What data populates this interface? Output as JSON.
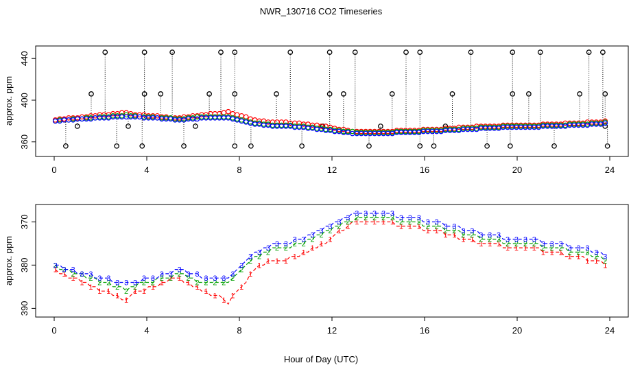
{
  "chart_data": [
    {
      "type": "scatter",
      "panel": "top",
      "title": "NWR_130716  CO2 Timeseries",
      "xlabel": "",
      "ylabel": "approx. ppm",
      "xlim": [
        -0.8,
        24.8
      ],
      "ylim": [
        346,
        452
      ],
      "xticks": [
        "0",
        "4",
        "8",
        "12",
        "16",
        "20",
        "24"
      ],
      "yticks": [
        "360",
        "400",
        "440"
      ],
      "grid": false,
      "legend": "none",
      "series": [
        {
          "name": "red",
          "color": "#ff0000",
          "values": [
            381,
            382,
            382,
            383,
            383,
            383,
            384,
            384,
            385,
            385,
            386,
            386,
            386,
            387,
            387,
            388,
            388,
            387,
            386,
            386,
            386,
            385,
            385,
            385,
            384,
            384,
            383,
            383,
            383,
            384,
            384,
            385,
            385,
            386,
            386,
            387,
            387,
            387,
            388,
            389,
            387,
            386,
            385,
            384,
            382,
            381,
            380,
            380,
            379,
            379,
            379,
            379,
            379,
            378,
            378,
            378,
            377,
            377,
            376,
            376,
            375,
            375,
            374,
            373,
            372,
            372,
            371,
            370,
            370,
            370,
            370,
            370,
            370,
            370,
            370,
            370,
            370,
            371,
            371,
            371,
            371,
            371,
            371,
            372,
            372,
            372,
            372,
            372,
            373,
            373,
            373,
            374,
            374,
            374,
            374,
            375,
            375,
            375,
            375,
            375,
            375,
            376,
            376,
            376,
            376,
            376,
            376,
            376,
            376,
            376,
            377,
            377,
            377,
            377,
            377,
            378,
            378,
            378,
            378,
            378,
            379,
            379,
            379,
            379,
            380
          ]
        },
        {
          "name": "green",
          "color": "#00a000",
          "values": [
            380,
            381,
            381,
            381,
            382,
            382,
            382,
            383,
            383,
            383,
            384,
            384,
            384,
            385,
            385,
            385,
            386,
            385,
            385,
            384,
            384,
            384,
            384,
            383,
            383,
            383,
            383,
            382,
            382,
            382,
            383,
            383,
            384,
            384,
            384,
            384,
            384,
            384,
            384,
            384,
            383,
            382,
            381,
            380,
            379,
            378,
            378,
            377,
            377,
            376,
            376,
            376,
            376,
            376,
            375,
            375,
            375,
            374,
            374,
            373,
            373,
            372,
            372,
            371,
            371,
            370,
            370,
            370,
            369,
            369,
            369,
            369,
            369,
            369,
            369,
            369,
            369,
            370,
            370,
            370,
            370,
            370,
            370,
            371,
            371,
            371,
            371,
            371,
            372,
            372,
            372,
            372,
            373,
            373,
            373,
            373,
            374,
            374,
            374,
            374,
            374,
            375,
            375,
            375,
            375,
            375,
            375,
            375,
            375,
            375,
            376,
            376,
            376,
            376,
            376,
            376,
            377,
            377,
            377,
            377,
            377,
            378,
            378,
            378,
            379
          ]
        },
        {
          "name": "blue",
          "color": "#0000ff",
          "values": [
            380,
            380,
            381,
            381,
            381,
            382,
            382,
            382,
            382,
            383,
            383,
            383,
            383,
            384,
            384,
            384,
            384,
            384,
            384,
            384,
            383,
            383,
            383,
            383,
            382,
            382,
            382,
            381,
            381,
            381,
            382,
            382,
            382,
            383,
            383,
            383,
            383,
            383,
            383,
            383,
            382,
            381,
            380,
            379,
            378,
            377,
            377,
            376,
            376,
            375,
            375,
            375,
            375,
            375,
            374,
            374,
            374,
            373,
            373,
            372,
            372,
            371,
            371,
            370,
            370,
            369,
            369,
            368,
            368,
            368,
            368,
            368,
            368,
            368,
            368,
            368,
            368,
            369,
            369,
            369,
            369,
            369,
            369,
            370,
            370,
            370,
            370,
            370,
            371,
            371,
            371,
            371,
            372,
            372,
            372,
            372,
            373,
            373,
            373,
            373,
            373,
            374,
            374,
            374,
            374,
            374,
            374,
            374,
            374,
            374,
            375,
            375,
            375,
            375,
            375,
            375,
            376,
            376,
            376,
            376,
            376,
            377,
            377,
            377,
            378
          ]
        },
        {
          "name": "spikes",
          "color": "#000000",
          "points": [
            [
              0.5,
              356
            ],
            [
              1.0,
              375
            ],
            [
              1.6,
              406
            ],
            [
              2.2,
              446
            ],
            [
              2.7,
              356
            ],
            [
              3.2,
              375
            ],
            [
              3.8,
              356
            ],
            [
              3.9,
              406
            ],
            [
              3.9,
              446
            ],
            [
              4.6,
              406
            ],
            [
              5.1,
              446
            ],
            [
              5.6,
              356
            ],
            [
              6.1,
              375
            ],
            [
              6.7,
              406
            ],
            [
              7.2,
              446
            ],
            [
              7.8,
              356
            ],
            [
              7.8,
              446
            ],
            [
              7.8,
              406
            ],
            [
              8.5,
              356
            ],
            [
              9.6,
              406
            ],
            [
              10.2,
              446
            ],
            [
              10.7,
              356
            ],
            [
              11.6,
              375
            ],
            [
              11.9,
              406
            ],
            [
              11.9,
              446
            ],
            [
              12.5,
              406
            ],
            [
              13.0,
              446
            ],
            [
              13.6,
              356
            ],
            [
              14.1,
              375
            ],
            [
              14.6,
              406
            ],
            [
              15.2,
              446
            ],
            [
              15.8,
              356
            ],
            [
              15.8,
              446
            ],
            [
              16.4,
              356
            ],
            [
              16.9,
              375
            ],
            [
              17.2,
              406
            ],
            [
              18.0,
              446
            ],
            [
              18.7,
              356
            ],
            [
              19.7,
              356
            ],
            [
              19.8,
              406
            ],
            [
              19.8,
              446
            ],
            [
              20.5,
              406
            ],
            [
              21.0,
              446
            ],
            [
              21.6,
              356
            ],
            [
              22.7,
              406
            ],
            [
              23.1,
              446
            ],
            [
              23.7,
              446
            ],
            [
              23.8,
              406
            ],
            [
              23.8,
              375
            ],
            [
              23.9,
              356
            ]
          ]
        }
      ]
    },
    {
      "type": "line",
      "panel": "bottom",
      "title": "",
      "xlabel": "Hour of Day (UTC)",
      "ylabel": "approx. ppm",
      "xlim": [
        -0.8,
        24.8
      ],
      "ylim": [
        366,
        392
      ],
      "yaxis_inverted": true,
      "xticks": [
        "0",
        "4",
        "8",
        "12",
        "16",
        "20",
        "24"
      ],
      "yticks": [
        "390",
        "380",
        "370"
      ],
      "grid": false,
      "legend": "none",
      "series": [
        {
          "name": "1",
          "symbol": "1",
          "color": "#ff0000",
          "values": [
            381,
            382,
            382,
            383,
            383,
            383,
            384,
            384,
            385,
            385,
            386,
            386,
            386,
            387,
            387,
            388,
            388,
            387,
            386,
            386,
            386,
            385,
            385,
            385,
            384,
            384,
            383,
            383,
            383,
            384,
            384,
            385,
            385,
            386,
            386,
            387,
            387,
            387,
            388,
            389,
            387,
            386,
            385,
            384,
            382,
            381,
            380,
            380,
            379,
            379,
            379,
            379,
            379,
            378,
            378,
            378,
            377,
            377,
            376,
            376,
            375,
            375,
            374,
            373,
            372,
            372,
            371,
            370,
            370,
            370,
            370,
            370,
            370,
            370,
            370,
            370,
            370,
            371,
            371,
            371,
            371,
            371,
            371,
            372,
            372,
            372,
            372,
            372,
            373,
            373,
            373,
            374,
            374,
            374,
            374,
            375,
            375,
            375,
            375,
            375,
            375,
            376,
            376,
            376,
            376,
            376,
            376,
            376,
            376,
            376,
            377,
            377,
            377,
            377,
            377,
            378,
            378,
            378,
            378,
            378,
            379,
            379,
            379,
            379,
            380
          ]
        },
        {
          "name": "2",
          "symbol": "2",
          "color": "#00a000",
          "values": [
            380,
            381,
            381,
            381,
            382,
            382,
            382,
            383,
            383,
            383,
            384,
            384,
            384,
            385,
            385,
            385,
            386,
            385,
            385,
            384,
            384,
            384,
            384,
            383,
            383,
            383,
            383,
            382,
            382,
            382,
            383,
            383,
            384,
            384,
            384,
            384,
            384,
            384,
            384,
            384,
            383,
            382,
            381,
            380,
            379,
            378,
            378,
            377,
            377,
            376,
            376,
            376,
            376,
            376,
            375,
            375,
            375,
            374,
            374,
            373,
            373,
            372,
            372,
            371,
            371,
            370,
            370,
            370,
            369,
            369,
            369,
            369,
            369,
            369,
            369,
            369,
            369,
            370,
            370,
            370,
            370,
            370,
            370,
            371,
            371,
            371,
            371,
            371,
            372,
            372,
            372,
            372,
            373,
            373,
            373,
            373,
            374,
            374,
            374,
            374,
            374,
            375,
            375,
            375,
            375,
            375,
            375,
            375,
            375,
            375,
            376,
            376,
            376,
            376,
            376,
            376,
            377,
            377,
            377,
            377,
            377,
            378,
            378,
            378,
            379
          ]
        },
        {
          "name": "3",
          "symbol": "3",
          "color": "#0000ff",
          "values": [
            380,
            380,
            381,
            381,
            381,
            382,
            382,
            382,
            382,
            383,
            383,
            383,
            383,
            384,
            384,
            384,
            384,
            384,
            384,
            384,
            383,
            383,
            383,
            383,
            382,
            382,
            382,
            381,
            381,
            381,
            382,
            382,
            382,
            383,
            383,
            383,
            383,
            383,
            383,
            383,
            382,
            381,
            380,
            379,
            378,
            377,
            377,
            376,
            376,
            375,
            375,
            375,
            375,
            375,
            374,
            374,
            374,
            373,
            373,
            372,
            372,
            371,
            371,
            370,
            370,
            369,
            369,
            368,
            368,
            368,
            368,
            368,
            368,
            368,
            368,
            368,
            368,
            369,
            369,
            369,
            369,
            369,
            369,
            370,
            370,
            370,
            370,
            370,
            371,
            371,
            371,
            371,
            372,
            372,
            372,
            372,
            373,
            373,
            373,
            373,
            373,
            374,
            374,
            374,
            374,
            374,
            374,
            374,
            374,
            374,
            375,
            375,
            375,
            375,
            375,
            375,
            376,
            376,
            376,
            376,
            376,
            377,
            377,
            377,
            378
          ]
        }
      ]
    }
  ]
}
